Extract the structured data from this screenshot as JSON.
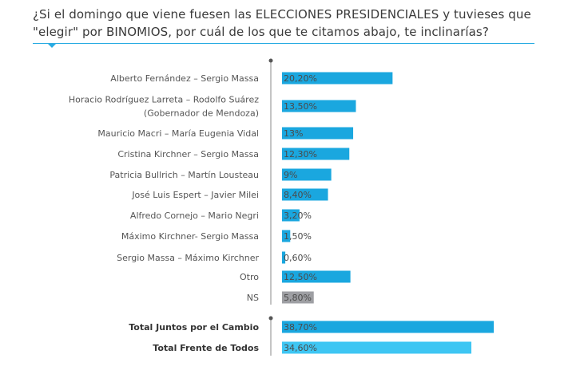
{
  "question": "¿Si el domingo que viene fuesen las ELECCIONES PRESIDENCIALES y tuvieses que \"elegir\" por BINOMIOS, por cuál de los que te citamos abajo, te inclinarías?",
  "chart_data": {
    "type": "bar",
    "orientation": "horizontal",
    "title": "¿Si el domingo que viene fuesen las ELECCIONES PRESIDENCIALES y tuvieses que \"elegir\" por BINOMIOS, por cuál de los que te citamos abajo, te inclinarías?",
    "xlabel": "",
    "ylabel": "",
    "unit": "%",
    "xlim": [
      0,
      40
    ],
    "grid": false,
    "categories": [
      [
        "Alberto Fernández – Sergio Massa"
      ],
      [
        "Horacio Rodríguez Larreta – Rodolfo Suárez",
        "(Gobernador de Mendoza)"
      ],
      [
        "Mauricio Macri – María Eugenia Vidal"
      ],
      [
        "Cristina Kirchner – Sergio Massa"
      ],
      [
        "Patricia Bullrich – Martín Lousteau"
      ],
      [
        "José Luis Espert – Javier Milei"
      ],
      [
        "Alfredo Cornejo – Mario Negri"
      ],
      [
        "Máximo Kirchner- Sergio Massa"
      ],
      [
        "Sergio Massa – Máximo Kirchner"
      ],
      [
        "Otro"
      ],
      [
        "NS"
      ]
    ],
    "values": [
      20.2,
      13.5,
      13,
      12.3,
      9,
      8.4,
      3.2,
      1.5,
      0.6,
      12.5,
      5.8
    ],
    "value_labels": [
      "20,20%",
      "13,50%",
      "13%",
      "12,30%",
      "9%",
      "8,40%",
      "3,20%",
      "1,50%",
      "0,60%",
      "12,50%",
      "5,80%"
    ],
    "colors": [
      "#1aa7df",
      "#1aa7df",
      "#1aa7df",
      "#1aa7df",
      "#1aa7df",
      "#1aa7df",
      "#1aa7df",
      "#1aa7df",
      "#1aa7df",
      "#1aa7df",
      "#9e9fa3"
    ],
    "totals": {
      "categories": [
        "Total Juntos por el Cambio",
        "Total Frente de Todos"
      ],
      "values": [
        38.7,
        34.6
      ],
      "value_labels": [
        "38,70%",
        "34,60%"
      ],
      "colors": [
        "#1aa7df",
        "#3ec6f3"
      ]
    }
  }
}
